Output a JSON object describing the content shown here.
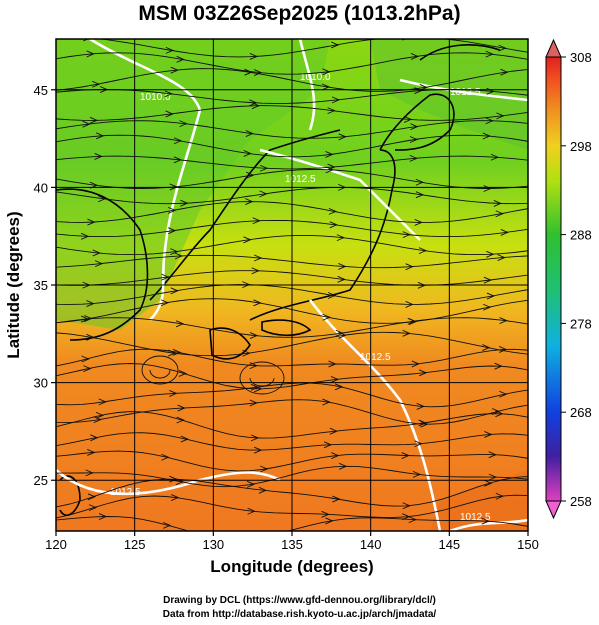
{
  "title": "MSM 03Z26Sep2025 (1013.2hPa)",
  "xaxis": {
    "label": "Longitude (degrees)",
    "ticks": [
      "120",
      "125",
      "130",
      "135",
      "140",
      "145",
      "150"
    ],
    "range": [
      120,
      150
    ]
  },
  "yaxis": {
    "label": "Latitude  (degrees)",
    "ticks": [
      "25",
      "30",
      "35",
      "40",
      "45"
    ],
    "range": [
      22.4,
      47.6
    ]
  },
  "colorbar": {
    "ticks": [
      "258",
      "268",
      "278",
      "288",
      "298",
      "308"
    ],
    "range": [
      258,
      308
    ],
    "colors": [
      "#e040c0",
      "#4020a0",
      "#1040e0",
      "#10b0e0",
      "#20c070",
      "#30c030",
      "#b0e010",
      "#f0d020",
      "#f09020",
      "#f05020",
      "#e02020"
    ]
  },
  "contour_labels": [
    "1010.0",
    "1012.5",
    "1010.0",
    "1012.5",
    "1012.5",
    "1012.5",
    "1012.5"
  ],
  "credits": {
    "line1": "Drawing by DCL (https://www.gfd-dennou.org/library/dcl/)",
    "line2": "Data from http://database.rish.kyoto-u.ac.jp/arch/jmadata/"
  },
  "colors": {
    "frame": "#000000",
    "isobar": "#ffffff",
    "streamline": "#101010",
    "warm": "#f07820",
    "mid": "#e0d020",
    "cool": "#70d020"
  }
}
